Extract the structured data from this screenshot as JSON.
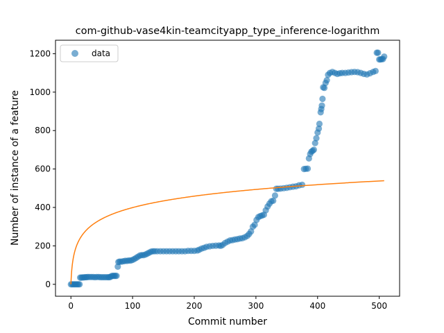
{
  "chart_data": {
    "type": "scatter",
    "title": "com-github-vase4kin-teamcityapp_type_inference-logarithm",
    "xlabel": "Commit number",
    "ylabel": "Number of instance of a feature",
    "xlim": [
      -25,
      533
    ],
    "ylim": [
      -62,
      1270
    ],
    "xticks": [
      0,
      100,
      200,
      300,
      400,
      500
    ],
    "yticks": [
      0,
      200,
      400,
      600,
      800,
      1000,
      1200
    ],
    "legend": {
      "position": "top-left",
      "entries": [
        "data"
      ]
    },
    "colors": {
      "data": "#1f77b4",
      "fit": "#ff7f0e"
    },
    "series": [
      {
        "name": "data",
        "kind": "scatter",
        "points": [
          [
            0,
            0
          ],
          [
            2,
            0
          ],
          [
            4,
            0
          ],
          [
            6,
            0
          ],
          [
            8,
            0
          ],
          [
            10,
            0
          ],
          [
            12,
            0
          ],
          [
            14,
            0
          ],
          [
            15,
            35
          ],
          [
            17,
            35
          ],
          [
            19,
            36
          ],
          [
            21,
            36
          ],
          [
            23,
            37
          ],
          [
            25,
            37
          ],
          [
            27,
            38
          ],
          [
            30,
            38
          ],
          [
            33,
            38
          ],
          [
            36,
            38
          ],
          [
            39,
            37
          ],
          [
            42,
            38
          ],
          [
            45,
            38
          ],
          [
            48,
            37
          ],
          [
            51,
            37
          ],
          [
            54,
            37
          ],
          [
            57,
            37
          ],
          [
            60,
            37
          ],
          [
            62,
            37
          ],
          [
            64,
            38
          ],
          [
            66,
            43
          ],
          [
            68,
            44
          ],
          [
            70,
            44
          ],
          [
            72,
            44
          ],
          [
            74,
            44
          ],
          [
            76,
            92
          ],
          [
            77,
            116
          ],
          [
            79,
            118
          ],
          [
            82,
            118
          ],
          [
            85,
            120
          ],
          [
            88,
            122
          ],
          [
            91,
            122
          ],
          [
            94,
            124
          ],
          [
            97,
            124
          ],
          [
            100,
            127
          ],
          [
            103,
            132
          ],
          [
            106,
            138
          ],
          [
            109,
            144
          ],
          [
            112,
            150
          ],
          [
            115,
            152
          ],
          [
            118,
            152
          ],
          [
            121,
            155
          ],
          [
            124,
            160
          ],
          [
            127,
            165
          ],
          [
            130,
            170
          ],
          [
            133,
            172
          ],
          [
            136,
            172
          ],
          [
            140,
            172
          ],
          [
            145,
            172
          ],
          [
            150,
            172
          ],
          [
            155,
            172
          ],
          [
            160,
            172
          ],
          [
            165,
            172
          ],
          [
            170,
            172
          ],
          [
            175,
            172
          ],
          [
            180,
            172
          ],
          [
            185,
            172
          ],
          [
            190,
            174
          ],
          [
            195,
            174
          ],
          [
            200,
            174
          ],
          [
            205,
            176
          ],
          [
            208,
            180
          ],
          [
            212,
            186
          ],
          [
            216,
            190
          ],
          [
            220,
            195
          ],
          [
            225,
            198
          ],
          [
            230,
            200
          ],
          [
            235,
            201
          ],
          [
            240,
            202
          ],
          [
            243,
            200
          ],
          [
            246,
            205
          ],
          [
            250,
            215
          ],
          [
            254,
            222
          ],
          [
            258,
            228
          ],
          [
            262,
            230
          ],
          [
            266,
            233
          ],
          [
            270,
            235
          ],
          [
            274,
            238
          ],
          [
            278,
            240
          ],
          [
            282,
            245
          ],
          [
            286,
            252
          ],
          [
            289,
            262
          ],
          [
            292,
            275
          ],
          [
            295,
            300
          ],
          [
            298,
            310
          ],
          [
            301,
            335
          ],
          [
            304,
            350
          ],
          [
            307,
            355
          ],
          [
            310,
            358
          ],
          [
            313,
            362
          ],
          [
            316,
            385
          ],
          [
            319,
            405
          ],
          [
            322,
            420
          ],
          [
            325,
            432
          ],
          [
            328,
            435
          ],
          [
            331,
            462
          ],
          [
            333,
            497
          ],
          [
            336,
            497
          ],
          [
            340,
            498
          ],
          [
            345,
            500
          ],
          [
            350,
            502
          ],
          [
            355,
            505
          ],
          [
            360,
            508
          ],
          [
            365,
            510
          ],
          [
            370,
            515
          ],
          [
            375,
            518
          ],
          [
            378,
            600
          ],
          [
            381,
            601
          ],
          [
            384,
            602
          ],
          [
            386,
            655
          ],
          [
            388,
            678
          ],
          [
            390,
            690
          ],
          [
            392,
            695
          ],
          [
            394,
            700
          ],
          [
            396,
            735
          ],
          [
            398,
            760
          ],
          [
            400,
            790
          ],
          [
            402,
            810
          ],
          [
            403,
            835
          ],
          [
            405,
            895
          ],
          [
            406,
            912
          ],
          [
            407,
            930
          ],
          [
            408,
            965
          ],
          [
            409,
            1025
          ],
          [
            411,
            1022
          ],
          [
            413,
            1048
          ],
          [
            415,
            1062
          ],
          [
            417,
            1090
          ],
          [
            420,
            1100
          ],
          [
            424,
            1105
          ],
          [
            428,
            1100
          ],
          [
            432,
            1095
          ],
          [
            436,
            1098
          ],
          [
            440,
            1100
          ],
          [
            445,
            1100
          ],
          [
            450,
            1102
          ],
          [
            455,
            1104
          ],
          [
            460,
            1105
          ],
          [
            465,
            1104
          ],
          [
            470,
            1100
          ],
          [
            475,
            1095
          ],
          [
            480,
            1092
          ],
          [
            485,
            1098
          ],
          [
            490,
            1105
          ],
          [
            494,
            1110
          ],
          [
            496,
            1205
          ],
          [
            498,
            1205
          ],
          [
            500,
            1170
          ],
          [
            502,
            1170
          ],
          [
            504,
            1172
          ],
          [
            506,
            1172
          ],
          [
            508,
            1185
          ]
        ]
      },
      {
        "kind": "line",
        "model": "logarithm",
        "a": 86.5,
        "b": 1.0,
        "c": 0,
        "x_range": [
          0,
          508
        ]
      }
    ]
  }
}
